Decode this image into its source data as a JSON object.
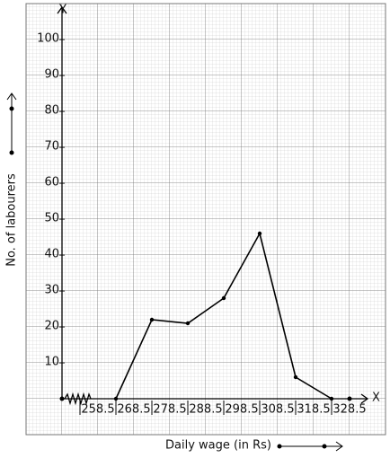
{
  "chart_data": {
    "type": "line",
    "x_label": "Daily wage (in Rs)",
    "y_label": "No. of labourers",
    "x_axis_letter": "X",
    "y_axis_letter": "Y",
    "x": [
      263.5,
      273.5,
      283.5,
      293.5,
      303.5,
      313.5,
      323.5
    ],
    "series": [
      {
        "name": "No. of labourers",
        "color": "#000000",
        "values": [
          0,
          22,
          21,
          28,
          46,
          6,
          0
        ]
      }
    ],
    "xlim": [
      248.5,
      333.5
    ],
    "ylim": [
      0,
      109
    ],
    "xticks": [
      258.5,
      268.5,
      278.5,
      288.5,
      298.5,
      308.5,
      318.5,
      328.5
    ],
    "yticks": [
      10,
      20,
      30,
      40,
      50,
      60,
      70,
      80,
      90,
      100
    ],
    "grid": true
  }
}
